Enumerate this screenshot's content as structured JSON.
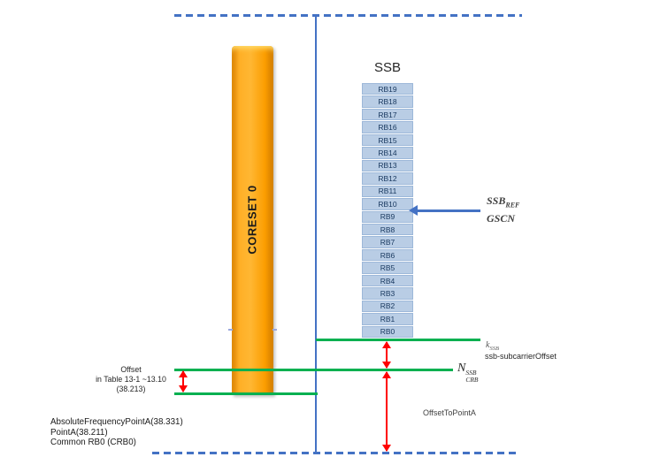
{
  "diagram": {
    "coreset_label": "CORESET 0",
    "ssb_title": "SSB",
    "rb_blocks": [
      "RB19",
      "RB18",
      "RB17",
      "RB16",
      "RB15",
      "RB14",
      "RB13",
      "RB12",
      "RB11",
      "RB10",
      "RB9",
      "RB8",
      "RB7",
      "RB6",
      "RB5",
      "RB4",
      "RB3",
      "RB2",
      "RB1",
      "RB0"
    ],
    "ssb_ref": {
      "main": "SSB",
      "sub": "REF"
    },
    "gscn_label": "GSCN",
    "k_ssb": {
      "main": "k",
      "sub": "SSB"
    },
    "ssb_subcarrier_offset_label": "ssb-subcarrierOffset",
    "n_crb": {
      "main": "N",
      "sup": "SSB",
      "sub": "CRB"
    },
    "offset_to_point_a_label": "OffsetToPointA",
    "offset_table": {
      "line1": "Offset",
      "line2": "in Table 13-1 ~13.10",
      "line3": "(38.213)"
    },
    "point_a_lines": [
      "AbsoluteFrequencyPointA(38.331)",
      "PointA(38.211)",
      "Common RB0 (CRB0)"
    ],
    "colors": {
      "boundary_blue": "#4472c4",
      "line_green": "#00b050",
      "arrow_red": "#ff0000",
      "coreset_orange": "#ffa726",
      "rb_fill": "#b9cde5"
    }
  }
}
